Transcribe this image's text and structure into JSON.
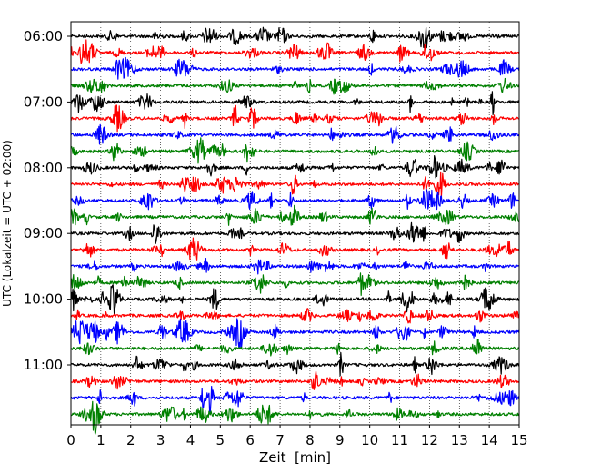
{
  "chart_data": {
    "type": "line",
    "subtype": "helicorder",
    "title": "",
    "xlabel": "Zeit  [min]",
    "ylabel": "UTC (Lokalzeit = UTC + 02:00)",
    "xlim": [
      0,
      15
    ],
    "x_ticks": [
      "0",
      "1",
      "2",
      "3",
      "4",
      "5",
      "6",
      "7",
      "8",
      "9",
      "10",
      "11",
      "12",
      "13",
      "14",
      "15"
    ],
    "y_tick_labels": [
      "06:00",
      "07:00",
      "08:00",
      "09:00",
      "10:00",
      "11:00"
    ],
    "y_tick_rows": [
      0,
      4,
      8,
      12,
      16,
      20
    ],
    "trace_count": 24,
    "trace_colors": [
      "#000000",
      "#ff0000",
      "#0000ff",
      "#008000"
    ],
    "grid": "vertical dotted at each minute",
    "legend": "none"
  }
}
